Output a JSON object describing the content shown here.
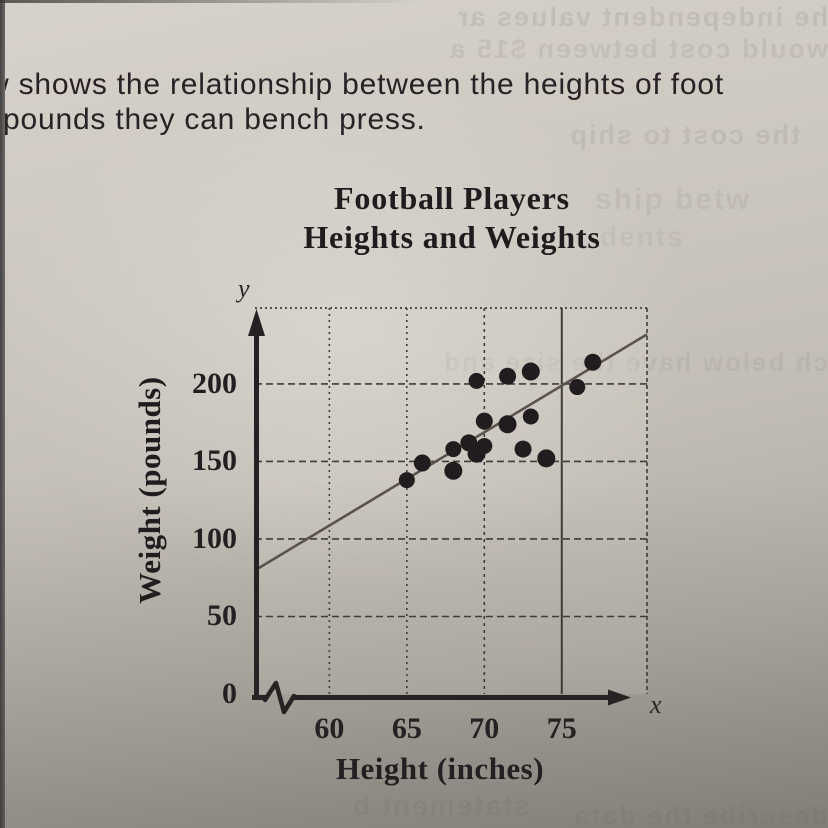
{
  "page": {
    "intro_line1": "w shows the relationship between the heights of foot",
    "intro_line2": "pounds they can bench press."
  },
  "bleed_through": {
    "top1": "he independent values ar",
    "top2": "would cost between $15 a",
    "mid": "the cost to ship",
    "right1": "ship betw",
    "right2": "dents",
    "plot": "ch below have the  size and",
    "bottom1": "statement b",
    "bottom2": "describe the data"
  },
  "chart_data": {
    "type": "scatter",
    "title_line1": "Football Players",
    "title_line2": "Heights and Weights",
    "xlabel": "Height (inches)",
    "ylabel": "Weight (pounds)",
    "x_axis_letter": "x",
    "y_axis_letter": "y",
    "x_ticks": [
      60,
      65,
      70,
      75
    ],
    "y_ticks": [
      0,
      50,
      100,
      150,
      200
    ],
    "xlim": [
      55.2,
      80.5
    ],
    "ylim": [
      0,
      249
    ],
    "grid": true,
    "axis_break_on_x": true,
    "points": [
      [
        65,
        138
      ],
      [
        66,
        149
      ],
      [
        68,
        144
      ],
      [
        68,
        158
      ],
      [
        69,
        162
      ],
      [
        69.5,
        155
      ],
      [
        70,
        160
      ],
      [
        70,
        176
      ],
      [
        71.5,
        174
      ],
      [
        73,
        179
      ],
      [
        72.5,
        158
      ],
      [
        74,
        152
      ],
      [
        69.5,
        202
      ],
      [
        71.5,
        205
      ],
      [
        73,
        208
      ],
      [
        76,
        198
      ],
      [
        77,
        214
      ]
    ],
    "trend_line": {
      "x1": 55.4,
      "y1": 81,
      "x2": 80.5,
      "y2": 232
    }
  }
}
